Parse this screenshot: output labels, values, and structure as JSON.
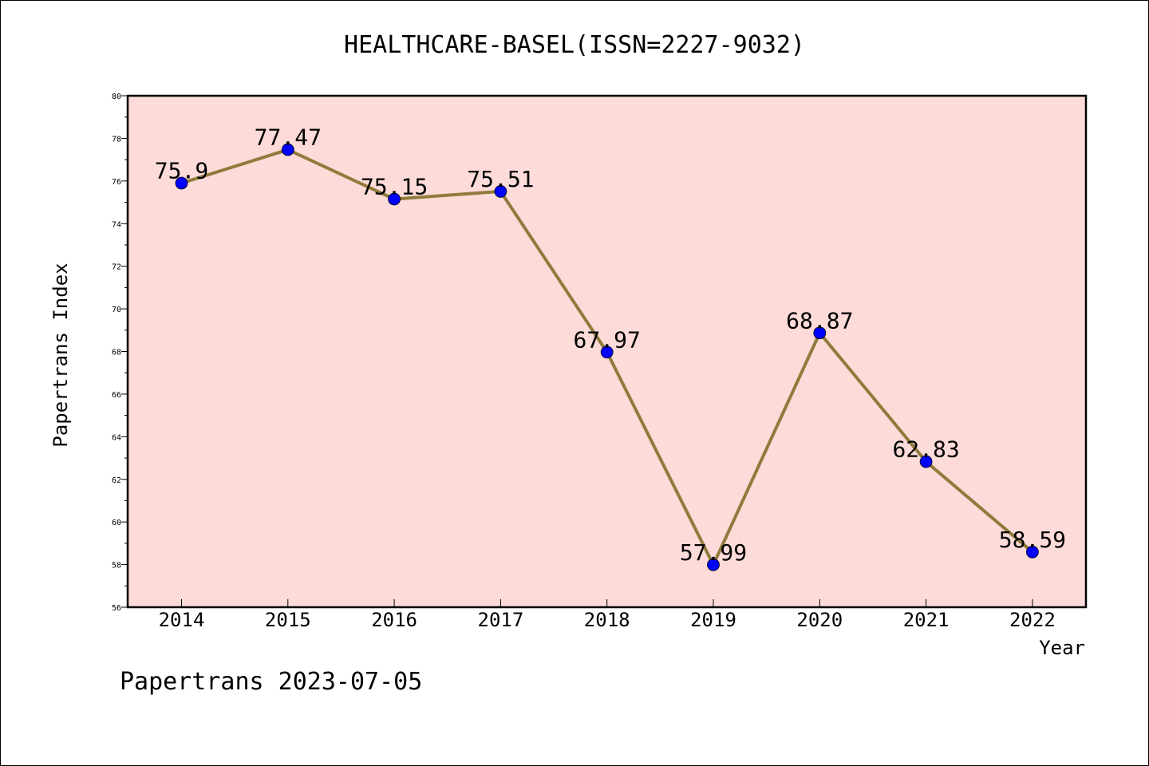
{
  "chart_data": {
    "type": "line",
    "title": "HEALTHCARE-BASEL(ISSN=2227-9032)",
    "xlabel": "Year",
    "ylabel": "Papertrans Index",
    "categories": [
      "2014",
      "2015",
      "2016",
      "2017",
      "2018",
      "2019",
      "2020",
      "2021",
      "2022"
    ],
    "series": [
      {
        "name": "Papertrans Index",
        "values": [
          75.9,
          77.47,
          75.15,
          75.51,
          67.97,
          57.99,
          68.87,
          62.83,
          58.59
        ],
        "labels": [
          "75.9",
          "77.47",
          "75.15",
          "75.51",
          "67.97",
          "57.99",
          "68.87",
          "62.83",
          "58.59"
        ]
      }
    ],
    "ylim": [
      56,
      80
    ],
    "yticks": [
      56,
      58,
      60,
      62,
      64,
      66,
      68,
      70,
      72,
      74,
      76,
      78,
      80
    ],
    "grid": false,
    "colors": {
      "plot_background": "#fddbd9",
      "line": "#8f7b3c",
      "marker": "#0000ff"
    }
  },
  "footer": {
    "text": "Papertrans 2023-07-05"
  }
}
